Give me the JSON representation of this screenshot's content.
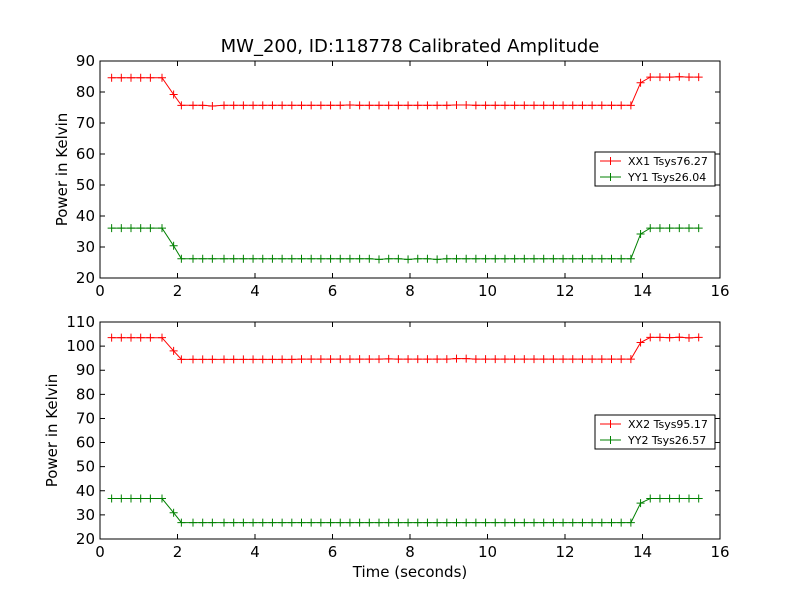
{
  "figure": {
    "title": "MW_200, ID:118778 Calibrated Amplitude"
  },
  "chart_data": [
    {
      "type": "line",
      "xlabel": "",
      "ylabel": "Power in Kelvin",
      "xlim": [
        0,
        16
      ],
      "ylim": [
        20,
        90
      ],
      "xticks": [
        0,
        2,
        4,
        6,
        8,
        10,
        12,
        14,
        16
      ],
      "yticks": [
        20,
        30,
        40,
        50,
        60,
        70,
        80,
        90
      ],
      "grid": false,
      "legend_position": "center-right",
      "marker": "+",
      "series": [
        {
          "name": "XX1 Tsys76.27",
          "color": "#ff0000",
          "x": [
            0.3,
            0.55,
            0.8,
            1.05,
            1.3,
            1.6,
            1.9,
            2.1,
            2.4,
            2.65,
            2.9,
            3.2,
            3.45,
            3.7,
            3.95,
            4.2,
            4.45,
            4.7,
            4.95,
            5.2,
            5.45,
            5.7,
            5.95,
            6.2,
            6.45,
            6.7,
            6.95,
            7.2,
            7.45,
            7.7,
            7.95,
            8.2,
            8.45,
            8.7,
            8.95,
            9.2,
            9.45,
            9.7,
            9.95,
            10.2,
            10.45,
            10.7,
            10.95,
            11.2,
            11.45,
            11.7,
            11.95,
            12.2,
            12.45,
            12.7,
            12.95,
            13.2,
            13.45,
            13.7,
            13.95,
            14.2,
            14.45,
            14.7,
            14.95,
            15.2,
            15.45
          ],
          "y": [
            84.6,
            84.6,
            84.6,
            84.6,
            84.6,
            84.6,
            79.2,
            75.7,
            75.7,
            75.7,
            75.5,
            75.7,
            75.7,
            75.7,
            75.7,
            75.7,
            75.7,
            75.7,
            75.7,
            75.7,
            75.7,
            75.7,
            75.7,
            75.7,
            75.8,
            75.7,
            75.7,
            75.7,
            75.7,
            75.7,
            75.7,
            75.7,
            75.7,
            75.7,
            75.7,
            75.8,
            75.8,
            75.7,
            75.7,
            75.7,
            75.7,
            75.7,
            75.7,
            75.7,
            75.7,
            75.7,
            75.7,
            75.7,
            75.7,
            75.7,
            75.7,
            75.7,
            75.7,
            75.7,
            83.0,
            84.8,
            84.8,
            84.8,
            84.9,
            84.8,
            84.8
          ]
        },
        {
          "name": "YY1 Tsys26.04",
          "color": "#008000",
          "x": [
            0.3,
            0.55,
            0.8,
            1.05,
            1.3,
            1.6,
            1.9,
            2.1,
            2.4,
            2.65,
            2.9,
            3.2,
            3.45,
            3.7,
            3.95,
            4.2,
            4.45,
            4.7,
            4.95,
            5.2,
            5.45,
            5.7,
            5.95,
            6.2,
            6.45,
            6.7,
            6.95,
            7.2,
            7.45,
            7.7,
            7.95,
            8.2,
            8.45,
            8.7,
            8.95,
            9.2,
            9.45,
            9.7,
            9.95,
            10.2,
            10.45,
            10.7,
            10.95,
            11.2,
            11.45,
            11.7,
            11.95,
            12.2,
            12.45,
            12.7,
            12.95,
            13.2,
            13.45,
            13.7,
            13.95,
            14.2,
            14.45,
            14.7,
            14.95,
            15.2,
            15.45
          ],
          "y": [
            36.1,
            36.1,
            36.1,
            36.1,
            36.1,
            36.1,
            30.4,
            26.2,
            26.2,
            26.2,
            26.2,
            26.2,
            26.2,
            26.2,
            26.2,
            26.2,
            26.2,
            26.2,
            26.2,
            26.2,
            26.2,
            26.2,
            26.2,
            26.2,
            26.2,
            26.2,
            26.2,
            26.0,
            26.2,
            26.2,
            26.0,
            26.2,
            26.2,
            26.0,
            26.2,
            26.2,
            26.2,
            26.2,
            26.2,
            26.2,
            26.2,
            26.2,
            26.2,
            26.2,
            26.2,
            26.2,
            26.2,
            26.2,
            26.2,
            26.2,
            26.2,
            26.2,
            26.2,
            26.2,
            34.2,
            36.1,
            36.1,
            36.1,
            36.1,
            36.1,
            36.1
          ]
        }
      ]
    },
    {
      "type": "line",
      "xlabel": "Time (seconds)",
      "ylabel": "Power in Kelvin",
      "xlim": [
        0,
        16
      ],
      "ylim": [
        20,
        110
      ],
      "xticks": [
        0,
        2,
        4,
        6,
        8,
        10,
        12,
        14,
        16
      ],
      "yticks": [
        20,
        30,
        40,
        50,
        60,
        70,
        80,
        90,
        100,
        110
      ],
      "grid": false,
      "legend_position": "center-right",
      "marker": "+",
      "series": [
        {
          "name": "XX2 Tsys95.17",
          "color": "#ff0000",
          "x": [
            0.3,
            0.55,
            0.8,
            1.05,
            1.3,
            1.6,
            1.9,
            2.1,
            2.4,
            2.65,
            2.9,
            3.2,
            3.45,
            3.7,
            3.95,
            4.2,
            4.45,
            4.7,
            4.95,
            5.2,
            5.45,
            5.7,
            5.95,
            6.2,
            6.45,
            6.7,
            6.95,
            7.2,
            7.45,
            7.7,
            7.95,
            8.2,
            8.45,
            8.7,
            8.95,
            9.2,
            9.45,
            9.7,
            9.95,
            10.2,
            10.45,
            10.7,
            10.95,
            11.2,
            11.45,
            11.7,
            11.95,
            12.2,
            12.45,
            12.7,
            12.95,
            13.2,
            13.45,
            13.7,
            13.95,
            14.2,
            14.45,
            14.7,
            14.95,
            15.2,
            15.45
          ],
          "y": [
            103.5,
            103.5,
            103.5,
            103.5,
            103.5,
            103.5,
            98.0,
            94.5,
            94.5,
            94.5,
            94.5,
            94.5,
            94.5,
            94.5,
            94.5,
            94.5,
            94.5,
            94.5,
            94.5,
            94.6,
            94.6,
            94.6,
            94.6,
            94.6,
            94.6,
            94.6,
            94.6,
            94.6,
            94.7,
            94.6,
            94.6,
            94.6,
            94.6,
            94.6,
            94.6,
            94.8,
            94.8,
            94.6,
            94.6,
            94.6,
            94.6,
            94.6,
            94.6,
            94.6,
            94.6,
            94.6,
            94.6,
            94.6,
            94.6,
            94.6,
            94.6,
            94.6,
            94.6,
            94.6,
            101.5,
            103.6,
            103.6,
            103.5,
            103.7,
            103.4,
            103.6
          ]
        },
        {
          "name": "YY2 Tsys26.57",
          "color": "#008000",
          "x": [
            0.3,
            0.55,
            0.8,
            1.05,
            1.3,
            1.6,
            1.9,
            2.1,
            2.4,
            2.65,
            2.9,
            3.2,
            3.45,
            3.7,
            3.95,
            4.2,
            4.45,
            4.7,
            4.95,
            5.2,
            5.45,
            5.7,
            5.95,
            6.2,
            6.45,
            6.7,
            6.95,
            7.2,
            7.45,
            7.7,
            7.95,
            8.2,
            8.45,
            8.7,
            8.95,
            9.2,
            9.45,
            9.7,
            9.95,
            10.2,
            10.45,
            10.7,
            10.95,
            11.2,
            11.45,
            11.7,
            11.95,
            12.2,
            12.45,
            12.7,
            12.95,
            13.2,
            13.45,
            13.7,
            13.95,
            14.2,
            14.45,
            14.7,
            14.95,
            15.2,
            15.45
          ],
          "y": [
            36.8,
            36.8,
            36.8,
            36.8,
            36.8,
            36.8,
            30.9,
            26.8,
            26.8,
            26.8,
            26.8,
            26.8,
            26.8,
            26.8,
            26.8,
            26.8,
            26.8,
            26.8,
            26.8,
            26.8,
            26.8,
            26.8,
            26.8,
            26.8,
            26.8,
            26.8,
            26.8,
            26.8,
            26.8,
            26.8,
            26.8,
            26.8,
            26.8,
            26.8,
            26.8,
            26.8,
            26.8,
            26.8,
            26.8,
            26.8,
            26.8,
            26.8,
            26.8,
            26.8,
            26.8,
            26.8,
            26.8,
            26.8,
            26.8,
            26.8,
            26.8,
            26.8,
            26.8,
            26.8,
            34.9,
            36.8,
            36.8,
            36.8,
            36.8,
            36.8,
            36.8
          ]
        }
      ]
    }
  ]
}
